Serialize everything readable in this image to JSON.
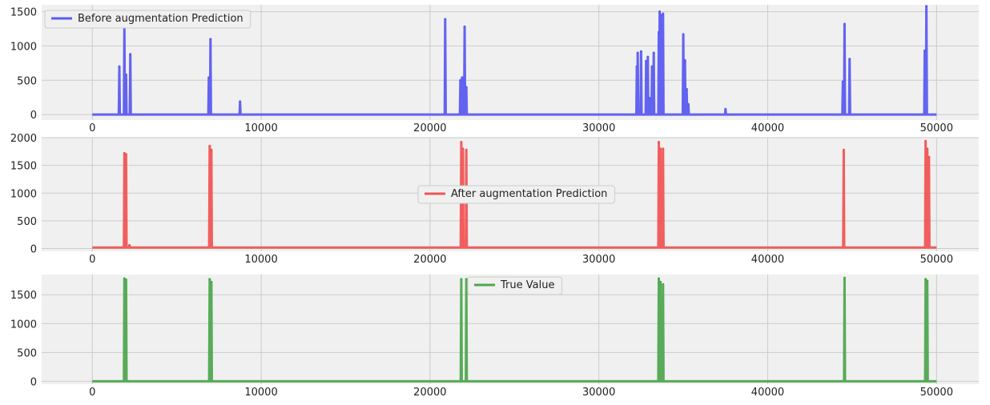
{
  "chart_data": [
    {
      "type": "line",
      "legend_position": "upper-left",
      "grid": true,
      "xlim": [
        -3000,
        52500
      ],
      "ylim": [
        -80,
        1600
      ],
      "x_ticks": [
        0,
        10000,
        20000,
        30000,
        40000,
        50000
      ],
      "y_ticks": [
        0,
        500,
        1000,
        1500
      ],
      "series": [
        {
          "name": "Before augmentation Prediction",
          "color": "#5b5bf0",
          "baseline": 0,
          "x_end": 50000,
          "spikes": [
            {
              "x": 1600,
              "y": 700
            },
            {
              "x": 1900,
              "y": 1280
            },
            {
              "x": 2000,
              "y": 580
            },
            {
              "x": 2250,
              "y": 880
            },
            {
              "x": 6900,
              "y": 540
            },
            {
              "x": 7000,
              "y": 1100
            },
            {
              "x": 8750,
              "y": 190
            },
            {
              "x": 20900,
              "y": 1390
            },
            {
              "x": 21800,
              "y": 500
            },
            {
              "x": 21900,
              "y": 540
            },
            {
              "x": 22050,
              "y": 1280
            },
            {
              "x": 22150,
              "y": 400
            },
            {
              "x": 32250,
              "y": 700
            },
            {
              "x": 32300,
              "y": 900
            },
            {
              "x": 32500,
              "y": 920
            },
            {
              "x": 32800,
              "y": 780
            },
            {
              "x": 32900,
              "y": 840
            },
            {
              "x": 33000,
              "y": 240
            },
            {
              "x": 33150,
              "y": 700
            },
            {
              "x": 33250,
              "y": 900
            },
            {
              "x": 33550,
              "y": 1200
            },
            {
              "x": 33600,
              "y": 1500
            },
            {
              "x": 33700,
              "y": 1450
            },
            {
              "x": 33800,
              "y": 1470
            },
            {
              "x": 35000,
              "y": 1170
            },
            {
              "x": 35100,
              "y": 790
            },
            {
              "x": 35200,
              "y": 370
            },
            {
              "x": 35300,
              "y": 150
            },
            {
              "x": 37500,
              "y": 80
            },
            {
              "x": 44450,
              "y": 480
            },
            {
              "x": 44550,
              "y": 1320
            },
            {
              "x": 44850,
              "y": 810
            },
            {
              "x": 49300,
              "y": 930
            },
            {
              "x": 49400,
              "y": 1580
            }
          ]
        }
      ]
    },
    {
      "type": "line",
      "legend_position": "center",
      "grid": true,
      "xlim": [
        -3000,
        52500
      ],
      "ylim": [
        -50,
        2000
      ],
      "x_ticks": [
        0,
        10000,
        20000,
        30000,
        40000,
        50000
      ],
      "y_ticks": [
        0,
        500,
        1000,
        1500,
        2000
      ],
      "series": [
        {
          "name": "After augmentation Prediction",
          "color": "#f05555",
          "baseline": 20,
          "x_end": 50000,
          "spikes": [
            {
              "x": 1900,
              "y": 1720
            },
            {
              "x": 2000,
              "y": 1700
            },
            {
              "x": 2200,
              "y": 60
            },
            {
              "x": 6950,
              "y": 1850
            },
            {
              "x": 7050,
              "y": 1780
            },
            {
              "x": 21850,
              "y": 1920
            },
            {
              "x": 21950,
              "y": 1800
            },
            {
              "x": 22150,
              "y": 1780
            },
            {
              "x": 33550,
              "y": 1920
            },
            {
              "x": 33650,
              "y": 1800
            },
            {
              "x": 33800,
              "y": 1800
            },
            {
              "x": 44500,
              "y": 1780
            },
            {
              "x": 49350,
              "y": 1940
            },
            {
              "x": 49450,
              "y": 1800
            },
            {
              "x": 49550,
              "y": 1650
            }
          ]
        }
      ]
    },
    {
      "type": "line",
      "legend_position": "upper-center",
      "grid": true,
      "xlim": [
        -3000,
        52500
      ],
      "ylim": [
        -50,
        1850
      ],
      "x_ticks": [
        0,
        10000,
        20000,
        30000,
        40000,
        50000
      ],
      "y_ticks": [
        0,
        500,
        1000,
        1500
      ],
      "series": [
        {
          "name": "True Value",
          "color": "#4fa64f",
          "baseline": 0,
          "x_end": 50000,
          "spikes": [
            {
              "x": 1900,
              "y": 1780
            },
            {
              "x": 2000,
              "y": 1760
            },
            {
              "x": 6950,
              "y": 1770
            },
            {
              "x": 7050,
              "y": 1720
            },
            {
              "x": 21850,
              "y": 1770
            },
            {
              "x": 22150,
              "y": 1770
            },
            {
              "x": 33550,
              "y": 1780
            },
            {
              "x": 33650,
              "y": 1720
            },
            {
              "x": 33800,
              "y": 1680
            },
            {
              "x": 44550,
              "y": 1790
            },
            {
              "x": 49350,
              "y": 1770
            },
            {
              "x": 49450,
              "y": 1740
            }
          ]
        }
      ]
    }
  ]
}
